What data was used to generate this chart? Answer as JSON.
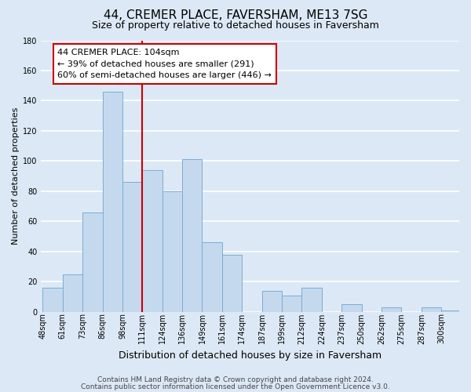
{
  "title": "44, CREMER PLACE, FAVERSHAM, ME13 7SG",
  "subtitle": "Size of property relative to detached houses in Faversham",
  "xlabel": "Distribution of detached houses by size in Faversham",
  "ylabel": "Number of detached properties",
  "bin_labels": [
    "48sqm",
    "61sqm",
    "73sqm",
    "86sqm",
    "98sqm",
    "111sqm",
    "124sqm",
    "136sqm",
    "149sqm",
    "161sqm",
    "174sqm",
    "187sqm",
    "199sqm",
    "212sqm",
    "224sqm",
    "237sqm",
    "250sqm",
    "262sqm",
    "275sqm",
    "287sqm",
    "300sqm"
  ],
  "bar_values": [
    16,
    25,
    66,
    146,
    86,
    94,
    80,
    101,
    46,
    38,
    0,
    14,
    11,
    16,
    0,
    5,
    0,
    3,
    0,
    3,
    1
  ],
  "bar_color": "#c5d9ee",
  "bar_edge_color": "#7aadd4",
  "background_color": "#dce8f5",
  "plot_bg_color": "#dce8f5",
  "grid_color": "#ffffff",
  "vline_color": "#cc0000",
  "vline_index": 5,
  "ylim": [
    0,
    180
  ],
  "yticks": [
    0,
    20,
    40,
    60,
    80,
    100,
    120,
    140,
    160,
    180
  ],
  "annotation_title": "44 CREMER PLACE: 104sqm",
  "annotation_line1": "← 39% of detached houses are smaller (291)",
  "annotation_line2": "60% of semi-detached houses are larger (446) →",
  "footer_line1": "Contains HM Land Registry data © Crown copyright and database right 2024.",
  "footer_line2": "Contains public sector information licensed under the Open Government Licence v3.0.",
  "title_fontsize": 11,
  "subtitle_fontsize": 9,
  "xlabel_fontsize": 9,
  "ylabel_fontsize": 8,
  "tick_fontsize": 7,
  "annotation_fontsize": 8,
  "footer_fontsize": 6.5
}
